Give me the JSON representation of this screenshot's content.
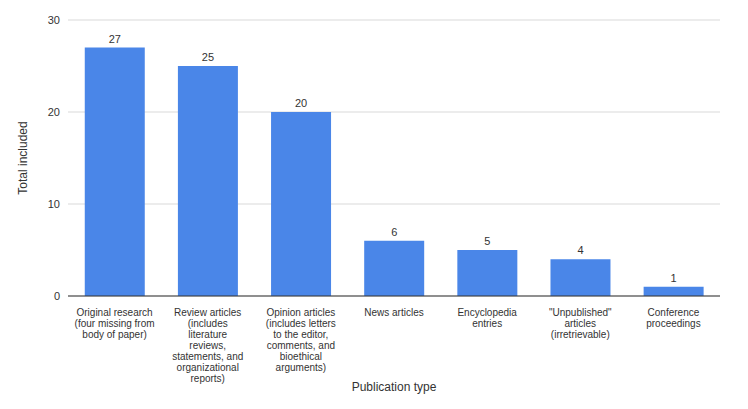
{
  "chart_data": {
    "type": "bar",
    "x_label": "Publication type",
    "y_label": "Total included",
    "categories": [
      "Original research (four missing from body of paper)",
      "Review articles (includes literature reviews, statements, and organizational reports)",
      "Opinion articles (includes letters to the editor, comments, and bioethical arguments)",
      "News articles",
      "Encyclopedia entries",
      "\"Unpublished\" articles (irretrievable)",
      "Conference proceedings"
    ],
    "values": [
      27,
      25,
      20,
      6,
      5,
      4,
      1
    ],
    "color": "#4a86e8",
    "ylim": [
      0,
      30
    ],
    "yticks": [
      0,
      10,
      20,
      30
    ],
    "grid": true,
    "data_labels": true
  }
}
